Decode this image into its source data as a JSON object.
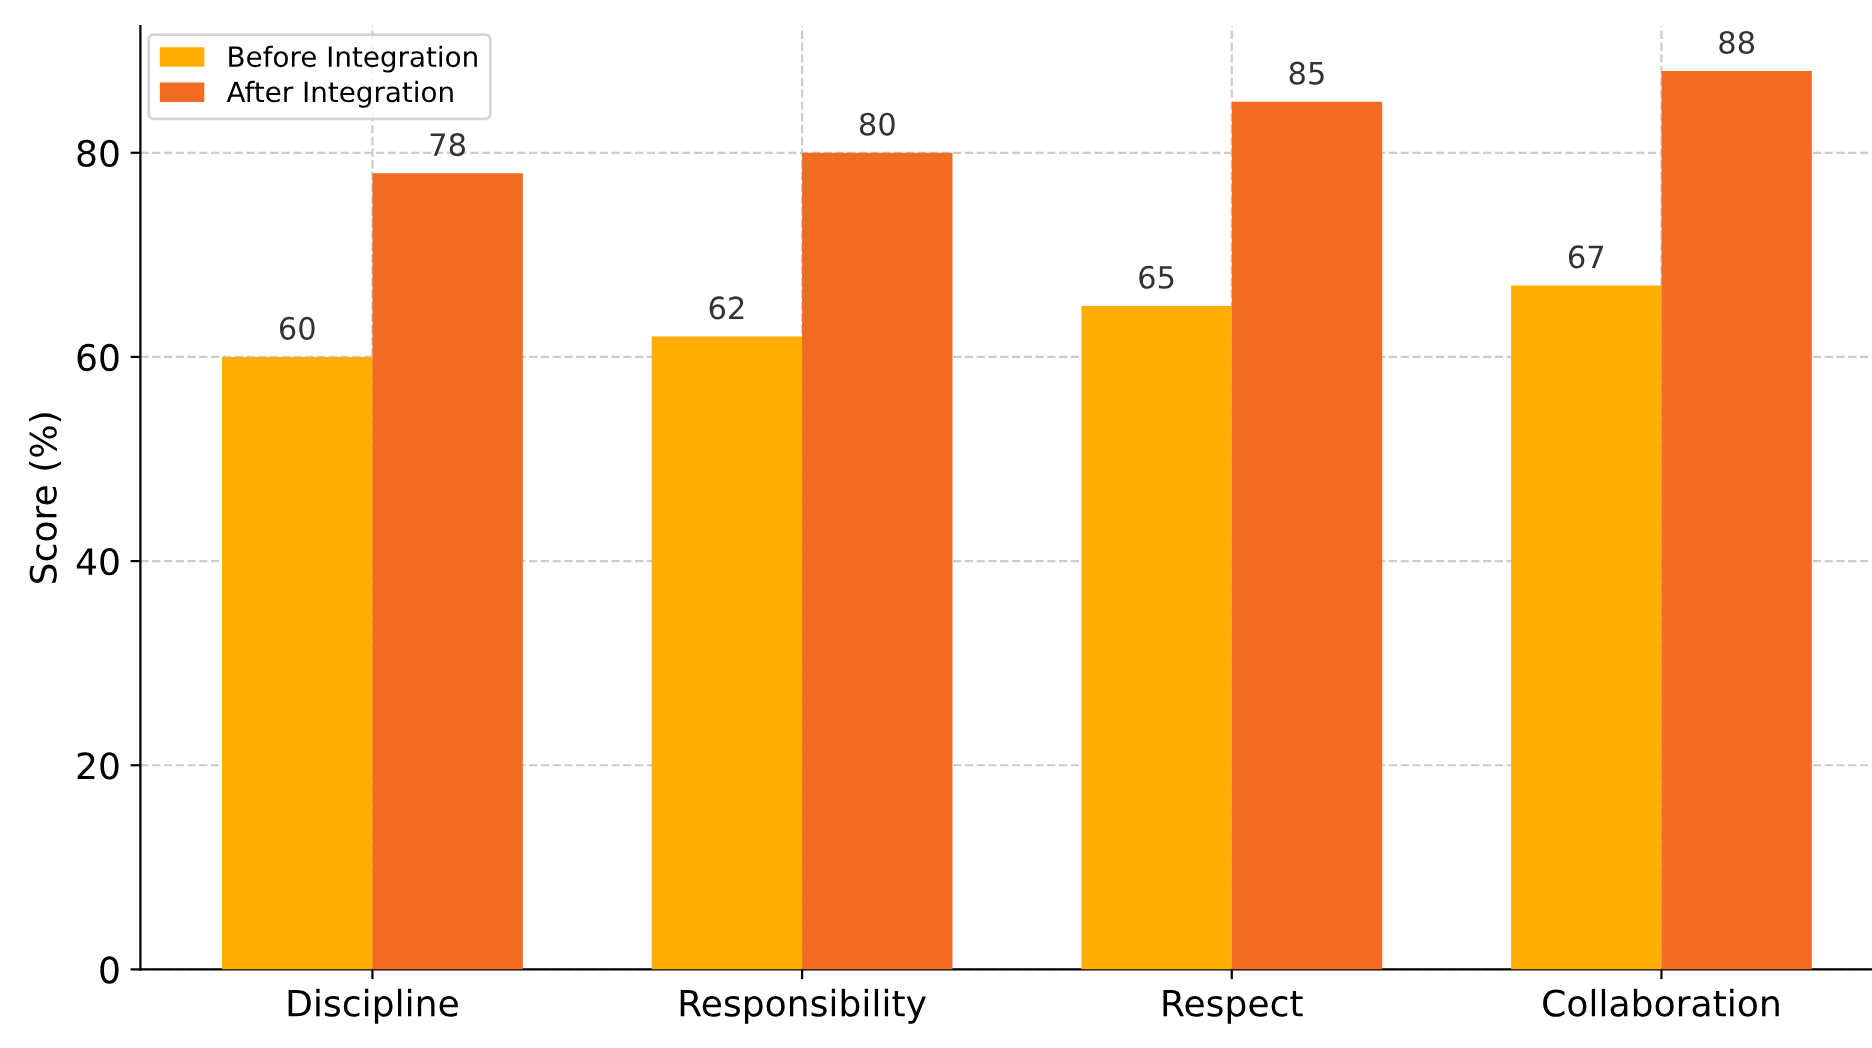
{
  "chart_data": {
    "type": "bar",
    "ylabel": "Score (%)",
    "categories": [
      "Discipline",
      "Responsibility",
      "Respect",
      "Collaboration"
    ],
    "series": [
      {
        "name": "Before Integration",
        "color": "#ffae00",
        "values": [
          60,
          62,
          65,
          67
        ]
      },
      {
        "name": "After Integration",
        "color": "#f26b22",
        "values": [
          78,
          80,
          85,
          88
        ]
      }
    ],
    "ylim": [
      0,
      92.4
    ],
    "yticks": [
      0,
      20,
      40,
      60,
      80
    ],
    "grid": true,
    "legend": "top left",
    "data_labels": true
  }
}
